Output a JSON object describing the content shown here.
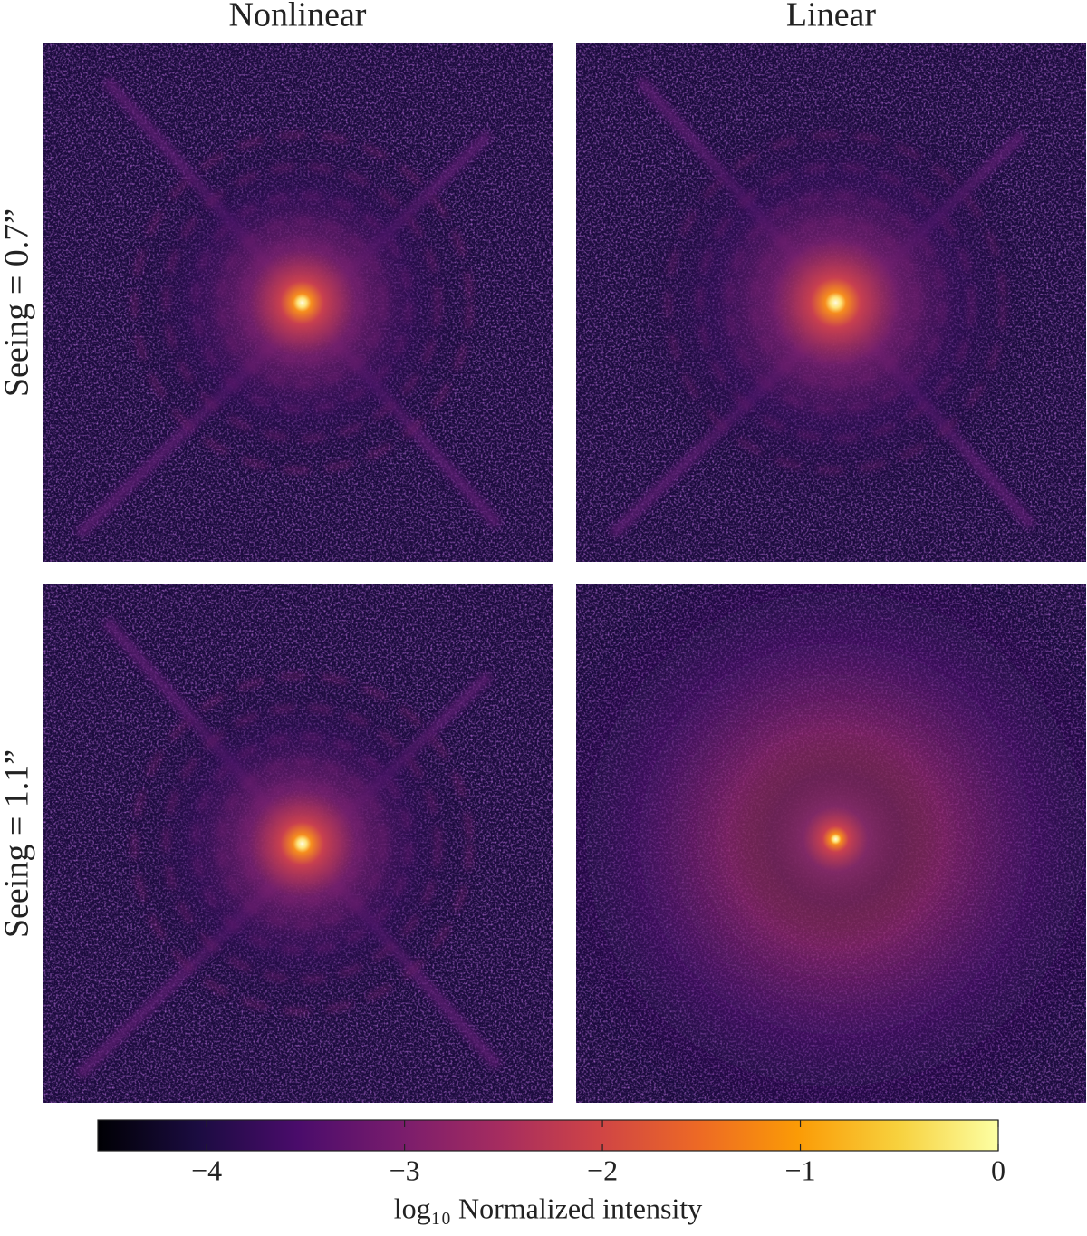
{
  "chart_data": {
    "type": "image_grid",
    "columns": [
      "Nonlinear",
      "Linear"
    ],
    "rows": [
      "Seeing = 0.7”",
      "Seeing = 1.1”"
    ],
    "colormap": "inferno",
    "colorbar_label": "log₁₀ Normalized intensity",
    "clim": [
      -4.55,
      0
    ],
    "cticks": [
      {
        "value": -4,
        "label": "−4"
      },
      {
        "value": -3,
        "label": "−3"
      },
      {
        "value": -2,
        "label": "−2"
      },
      {
        "value": -1,
        "label": "−1"
      },
      0
    ]
  }
}
